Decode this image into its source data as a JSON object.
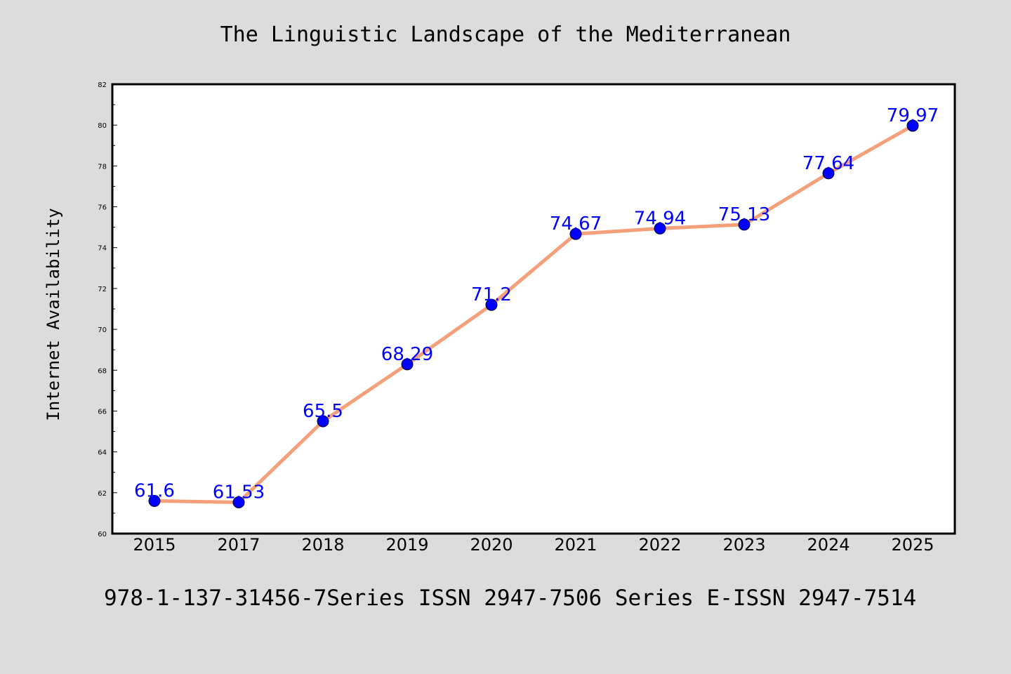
{
  "colors": {
    "background": "#dcdcdc",
    "plot_background": "#ffffff",
    "line": "#f4a07a",
    "marker": "#0000ff",
    "data_label": "#0000ff"
  },
  "footer_text": "978-1-137-31456-7Series ISSN 2947-7506 Series E-ISSN 2947-7514",
  "chart_data": {
    "type": "line",
    "title": "The Linguistic Landscape of the Mediterranean",
    "xlabel": "",
    "ylabel": "Internet Availability",
    "categories": [
      "2015",
      "2017",
      "2018",
      "2019",
      "2020",
      "2021",
      "2022",
      "2023",
      "2024",
      "2025"
    ],
    "series": [
      {
        "values": [
          61.6,
          61.53,
          65.5,
          68.29,
          71.2,
          74.67,
          74.94,
          75.13,
          77.64,
          79.97
        ],
        "labels": [
          "61.6",
          "61.53",
          "65.5",
          "68.29",
          "71.2",
          "74.67",
          "74.94",
          "75.13",
          "77.64",
          "79.97"
        ]
      }
    ],
    "ylim": [
      60,
      82
    ],
    "yticks": [
      60,
      62,
      64,
      66,
      68,
      70,
      72,
      74,
      76,
      78,
      80,
      82
    ],
    "grid": false,
    "legend": "none"
  }
}
